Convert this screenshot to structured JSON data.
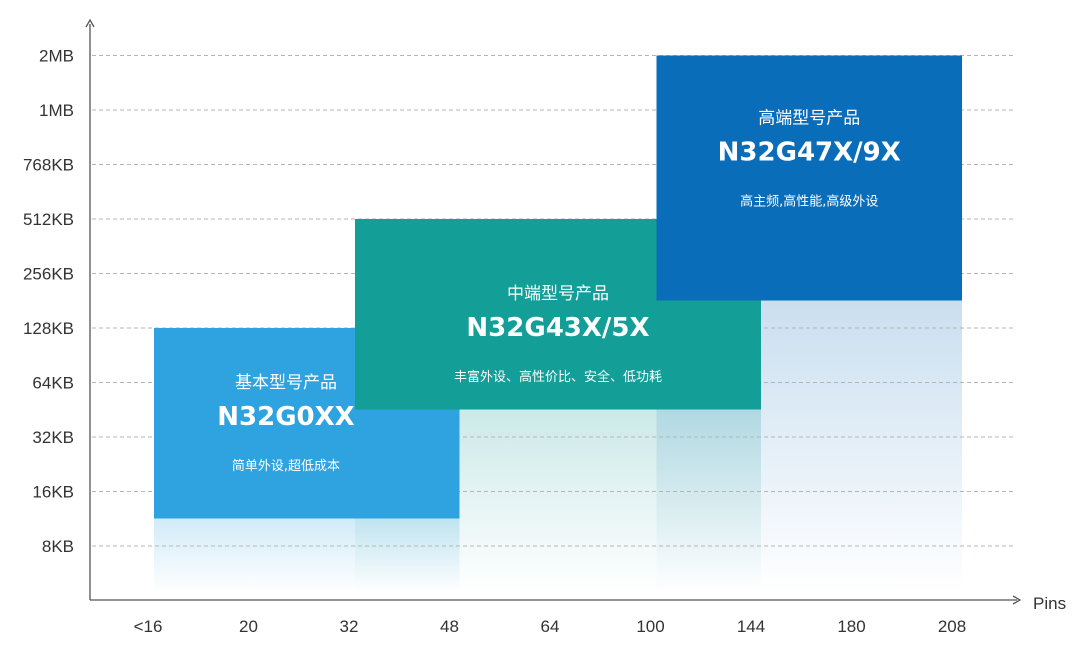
{
  "chart_data": {
    "type": "range-box",
    "title": "",
    "xlabel": "Pins",
    "ylabel": "",
    "x_categories": [
      "<16",
      "20",
      "32",
      "48",
      "64",
      "100",
      "144",
      "180",
      "208"
    ],
    "y_categories": [
      "8KB",
      "16KB",
      "32KB",
      "64KB",
      "128KB",
      "256KB",
      "512KB",
      "768KB",
      "1MB",
      "2MB"
    ],
    "grid": true,
    "series": [
      {
        "category_label": "基本型号产品",
        "name": "N32G0XX",
        "description": "简单外设,超低成本",
        "x_range": [
          "<16",
          "48"
        ],
        "y_range": [
          "16KB",
          "128KB"
        ],
        "color": "#2ea3df"
      },
      {
        "category_label": "中端型号产品",
        "name": "N32G43X/5X",
        "description": "丰富外设、高性价比、安全、低功耗",
        "x_range": [
          "32",
          "144"
        ],
        "y_range": [
          "64KB",
          "512KB"
        ],
        "color": "#149e98"
      },
      {
        "category_label": "高端型号产品",
        "name": "N32G47X/9X",
        "description": "高主频,高性能,高级外设",
        "x_range": [
          "100",
          "208"
        ],
        "y_range": [
          "256KB",
          "2MB"
        ],
        "color": "#0a6db9"
      }
    ]
  }
}
